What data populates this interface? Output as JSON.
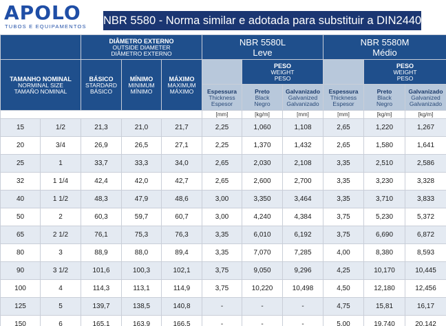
{
  "brand": {
    "name": "APOLO",
    "tagline": "TUBOS E EQUIPAMENTOS"
  },
  "title": "NBR 5580 - Norma similar e adotada para substituir a DIN2440",
  "header": {
    "diametro": {
      "pt": "DIÂMETRO EXTERNO",
      "en": "OUTSIDE DIAMETER",
      "es": "DIÂMETRO EXTERNO"
    },
    "leve": {
      "line1": "NBR 5580L",
      "line2": "Leve"
    },
    "medio": {
      "line1": "NBR 5580M",
      "line2": "Médio"
    },
    "tamanho": {
      "pt": "TAMANHO NOMINAL",
      "en": "NORMINAL SIZE",
      "es": "TAMAÑO NOMINAL"
    },
    "basico": {
      "pt": "BÁSICO",
      "en": "STARDARD",
      "es": "BÁSICO"
    },
    "minimo": {
      "pt": "MÍNIMO",
      "en": "MINIMUM",
      "es": "MÍNIMO"
    },
    "maximo": {
      "pt": "MÁXIMO",
      "en": "MAXIMUM",
      "es": "MÁXIMO"
    },
    "peso": {
      "pt": "PESO",
      "en": "WEIGHT",
      "es": "PESO"
    },
    "espessura": {
      "pt": "Espessura",
      "en": "Thickness",
      "es": "Espesor"
    },
    "preto": {
      "pt": "Preto",
      "en": "Black",
      "es": "Negro"
    },
    "galvanizado": {
      "pt": "Galvanizado",
      "en": "Galvanized",
      "es": "Galvanizado"
    },
    "units": {
      "mm": "[mm]",
      "kgm": "[kg/m]"
    }
  },
  "rows": [
    [
      "15",
      "1/2",
      "21,3",
      "21,0",
      "21,7",
      "2,25",
      "1,060",
      "1,108",
      "2,65",
      "1,220",
      "1,267"
    ],
    [
      "20",
      "3/4",
      "26,9",
      "26,5",
      "27,1",
      "2,25",
      "1,370",
      "1,432",
      "2,65",
      "1,580",
      "1,641"
    ],
    [
      "25",
      "1",
      "33,7",
      "33,3",
      "34,0",
      "2,65",
      "2,030",
      "2,108",
      "3,35",
      "2,510",
      "2,586"
    ],
    [
      "32",
      "1 1/4",
      "42,4",
      "42,0",
      "42,7",
      "2,65",
      "2,600",
      "2,700",
      "3,35",
      "3,230",
      "3,328"
    ],
    [
      "40",
      "1 1/2",
      "48,3",
      "47,9",
      "48,6",
      "3,00",
      "3,350",
      "3,464",
      "3,35",
      "3,710",
      "3,833"
    ],
    [
      "50",
      "2",
      "60,3",
      "59,7",
      "60,7",
      "3,00",
      "4,240",
      "4,384",
      "3,75",
      "5,230",
      "5,372"
    ],
    [
      "65",
      "2 1/2",
      "76,1",
      "75,3",
      "76,3",
      "3,35",
      "6,010",
      "6,192",
      "3,75",
      "6,690",
      "6,872"
    ],
    [
      "80",
      "3",
      "88,9",
      "88,0",
      "89,4",
      "3,35",
      "7,070",
      "7,285",
      "4,00",
      "8,380",
      "8,593"
    ],
    [
      "90",
      "3 1/2",
      "101,6",
      "100,3",
      "102,1",
      "3,75",
      "9,050",
      "9,296",
      "4,25",
      "10,170",
      "10,445"
    ],
    [
      "100",
      "4",
      "114,3",
      "113,1",
      "114,9",
      "3,75",
      "10,220",
      "10,498",
      "4,50",
      "12,180",
      "12,456"
    ],
    [
      "125",
      "5",
      "139,7",
      "138,5",
      "140,8",
      "-",
      "-",
      "-",
      "4,75",
      "15,81",
      "16,17"
    ],
    [
      "150",
      "6",
      "165,1",
      "163,9",
      "166,5",
      "-",
      "-",
      "-",
      "5,00",
      "19,740",
      "20,142"
    ]
  ]
}
